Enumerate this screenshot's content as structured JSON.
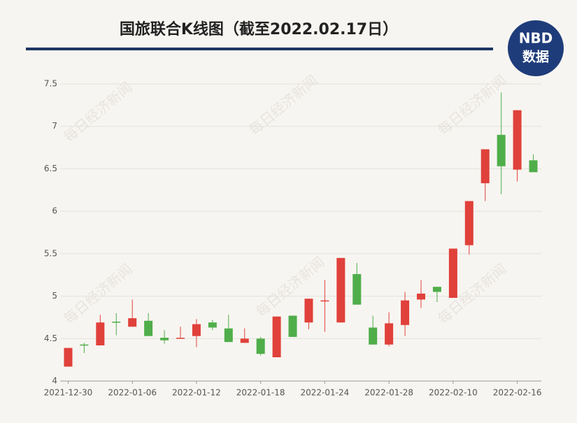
{
  "chart_data": {
    "type": "candlestick",
    "title": "国旅联合K线图（截至2022.02.17日）",
    "badge": {
      "top": "NBD",
      "bottom": "数据"
    },
    "watermark": "每日经济新闻",
    "categories": [
      "2021-12-30",
      null,
      null,
      null,
      "2022-01-06",
      null,
      null,
      null,
      "2022-01-12",
      null,
      null,
      null,
      "2022-01-18",
      null,
      null,
      null,
      "2022-01-24",
      null,
      null,
      null,
      "2022-01-28",
      null,
      null,
      null,
      "2022-02-10",
      null,
      null,
      null,
      "2022-02-16",
      null
    ],
    "open": [
      4.17,
      4.43,
      4.42,
      4.7,
      4.64,
      4.71,
      4.51,
      4.5,
      4.53,
      4.69,
      4.62,
      4.45,
      4.5,
      4.28,
      4.77,
      4.69,
      4.94,
      4.69,
      5.26,
      4.63,
      4.43,
      4.66,
      4.96,
      5.11,
      4.98,
      5.6,
      6.33,
      6.9,
      6.49,
      6.6
    ],
    "high": [
      4.39,
      4.45,
      4.78,
      4.8,
      4.96,
      4.8,
      4.6,
      4.64,
      4.73,
      4.72,
      4.78,
      4.62,
      4.52,
      4.76,
      4.77,
      4.97,
      5.19,
      5.45,
      5.39,
      4.77,
      4.81,
      5.05,
      5.19,
      5.11,
      5.56,
      6.12,
      6.73,
      7.4,
      7.19,
      6.67
    ],
    "low": [
      4.17,
      4.33,
      4.42,
      4.54,
      4.64,
      4.53,
      4.44,
      4.5,
      4.4,
      4.6,
      4.46,
      4.45,
      4.3,
      4.28,
      4.52,
      4.61,
      4.58,
      4.69,
      4.9,
      4.43,
      4.41,
      4.53,
      4.86,
      4.93,
      4.98,
      5.49,
      6.12,
      6.2,
      6.35,
      6.46
    ],
    "close": [
      4.39,
      4.42,
      4.69,
      4.69,
      4.74,
      4.53,
      4.48,
      4.51,
      4.67,
      4.63,
      4.46,
      4.5,
      4.32,
      4.76,
      4.52,
      4.97,
      4.95,
      5.45,
      4.9,
      4.43,
      4.68,
      4.95,
      5.03,
      5.05,
      5.56,
      6.12,
      6.73,
      6.53,
      7.19,
      6.46
    ],
    "up_color": "#e0413a",
    "down_color": "#4fae4a",
    "ylim": [
      4,
      7.5
    ],
    "yticks": [
      4,
      4.5,
      5,
      5.5,
      6,
      6.5,
      7,
      7.5
    ],
    "grid": true
  }
}
